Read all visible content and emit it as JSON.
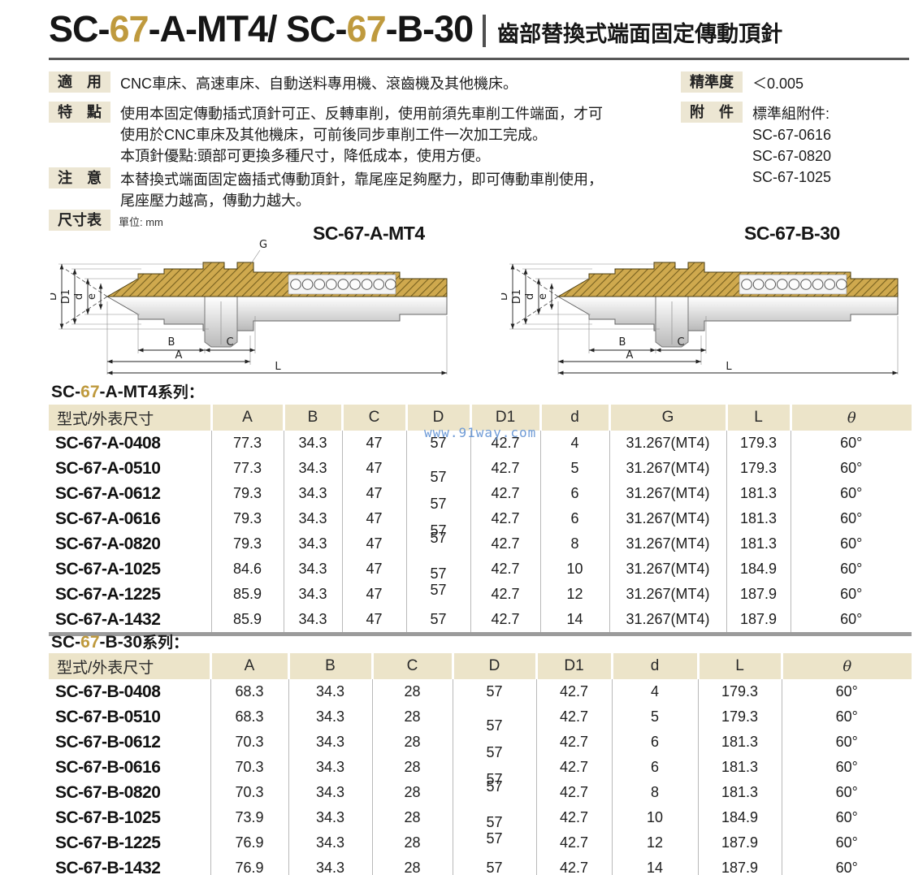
{
  "header": {
    "title_parts": [
      "SC-",
      "67",
      "-A-MT4/ SC-",
      "67",
      "-B-30"
    ],
    "subtitle": "齒部替換式端面固定傳動頂針"
  },
  "info": {
    "apply_label": "適　用",
    "apply_text": "CNC車床、高速車床、自動送料專用機、滾齒機及其他機床。",
    "feature_label": "特　點",
    "feature_text": "使用本固定傳動插式頂針可正、反轉車削，使用前須先車削工件端面，才可\n使用於CNC車床及其他機床，可前後同步車削工件一次加工完成。\n本頂針優點:頭部可更換多種尺寸，降低成本，使用方便。",
    "note_label": "注　意",
    "note_text": "本替換式端面固定齒插式傳動頂針，靠尾座足夠壓力，即可傳動車削使用，\n尾座壓力越高，傳動力越大。",
    "precision_label": "精準度",
    "precision_value": "＜0.005",
    "accessory_label": "附　件",
    "accessory_text": "標準組附件:\nSC-67-0616\nSC-67-0820\nSC-67-1025"
  },
  "dimension": {
    "label": "尺寸表",
    "unit": "單位: mm",
    "diagramA_title": "SC-67-A-MT4",
    "diagramB_title": "SC-67-B-30",
    "dim_labels_A": [
      "D",
      "D1",
      "d",
      "e",
      "G",
      "B",
      "C",
      "A",
      "L"
    ],
    "dim_labels_B": [
      "D",
      "D1",
      "d",
      "e",
      "B",
      "C",
      "A",
      "L"
    ]
  },
  "series1": {
    "title_parts": [
      "SC-",
      "67",
      "-A-MT4",
      "系列："
    ],
    "columns": [
      "型式/外表尺寸",
      "A",
      "B",
      "C",
      "D",
      "D1",
      "d",
      "G",
      "L",
      "θ"
    ],
    "rows": [
      [
        "SC-67-A-0408",
        "77.3",
        "34.3",
        "47",
        "57",
        "42.7",
        "4",
        "31.267(MT4)",
        "179.3",
        "60°"
      ],
      [
        "SC-67-A-0510",
        "77.3",
        "34.3",
        "47",
        "57",
        "42.7",
        "5",
        "31.267(MT4)",
        "179.3",
        "60°"
      ],
      [
        "SC-67-A-0612",
        "79.3",
        "34.3",
        "47",
        "57",
        "42.7",
        "6",
        "31.267(MT4)",
        "181.3",
        "60°"
      ],
      [
        "SC-67-A-0616",
        "79.3",
        "34.3",
        "47",
        "57",
        "42.7",
        "6",
        "31.267(MT4)",
        "181.3",
        "60°"
      ],
      [
        "SC-67-A-0820",
        "79.3",
        "34.3",
        "47",
        "57",
        "42.7",
        "8",
        "31.267(MT4)",
        "181.3",
        "60°"
      ],
      [
        "SC-67-A-1025",
        "84.6",
        "34.3",
        "47",
        "57",
        "42.7",
        "10",
        "31.267(MT4)",
        "184.9",
        "60°"
      ],
      [
        "SC-67-A-1225",
        "85.9",
        "34.3",
        "47",
        "57",
        "42.7",
        "12",
        "31.267(MT4)",
        "187.9",
        "60°"
      ],
      [
        "SC-67-A-1432",
        "85.9",
        "34.3",
        "47",
        "57",
        "42.7",
        "14",
        "31.267(MT4)",
        "187.9",
        "60°"
      ]
    ]
  },
  "series2": {
    "title_parts": [
      "SC-",
      "67",
      "-B-30",
      "系列："
    ],
    "columns": [
      "型式/外表尺寸",
      "A",
      "B",
      "C",
      "D",
      "D1",
      "d",
      "L",
      "θ"
    ],
    "rows": [
      [
        "SC-67-B-0408",
        "68.3",
        "34.3",
        "28",
        "57",
        "42.7",
        "4",
        "179.3",
        "60°"
      ],
      [
        "SC-67-B-0510",
        "68.3",
        "34.3",
        "28",
        "57",
        "42.7",
        "5",
        "179.3",
        "60°"
      ],
      [
        "SC-67-B-0612",
        "70.3",
        "34.3",
        "28",
        "57",
        "42.7",
        "6",
        "181.3",
        "60°"
      ],
      [
        "SC-67-B-0616",
        "70.3",
        "34.3",
        "28",
        "57",
        "42.7",
        "6",
        "181.3",
        "60°"
      ],
      [
        "SC-67-B-0820",
        "70.3",
        "34.3",
        "28",
        "57",
        "42.7",
        "8",
        "181.3",
        "60°"
      ],
      [
        "SC-67-B-1025",
        "73.9",
        "34.3",
        "28",
        "57",
        "42.7",
        "10",
        "184.9",
        "60°"
      ],
      [
        "SC-67-B-1225",
        "76.9",
        "34.3",
        "28",
        "57",
        "42.7",
        "12",
        "187.9",
        "60°"
      ],
      [
        "SC-67-B-1432",
        "76.9",
        "34.3",
        "28",
        "57",
        "42.7",
        "14",
        "187.9",
        "60°"
      ]
    ]
  },
  "watermark": "www.91way.com",
  "colors": {
    "accent_gold": "#bf9a3e",
    "table_header_bg": "#ece4c9",
    "chip_bg": "#ece6d3",
    "hatch_fill": "#cfa94e",
    "watermark_blue": "#6f9bd6"
  }
}
